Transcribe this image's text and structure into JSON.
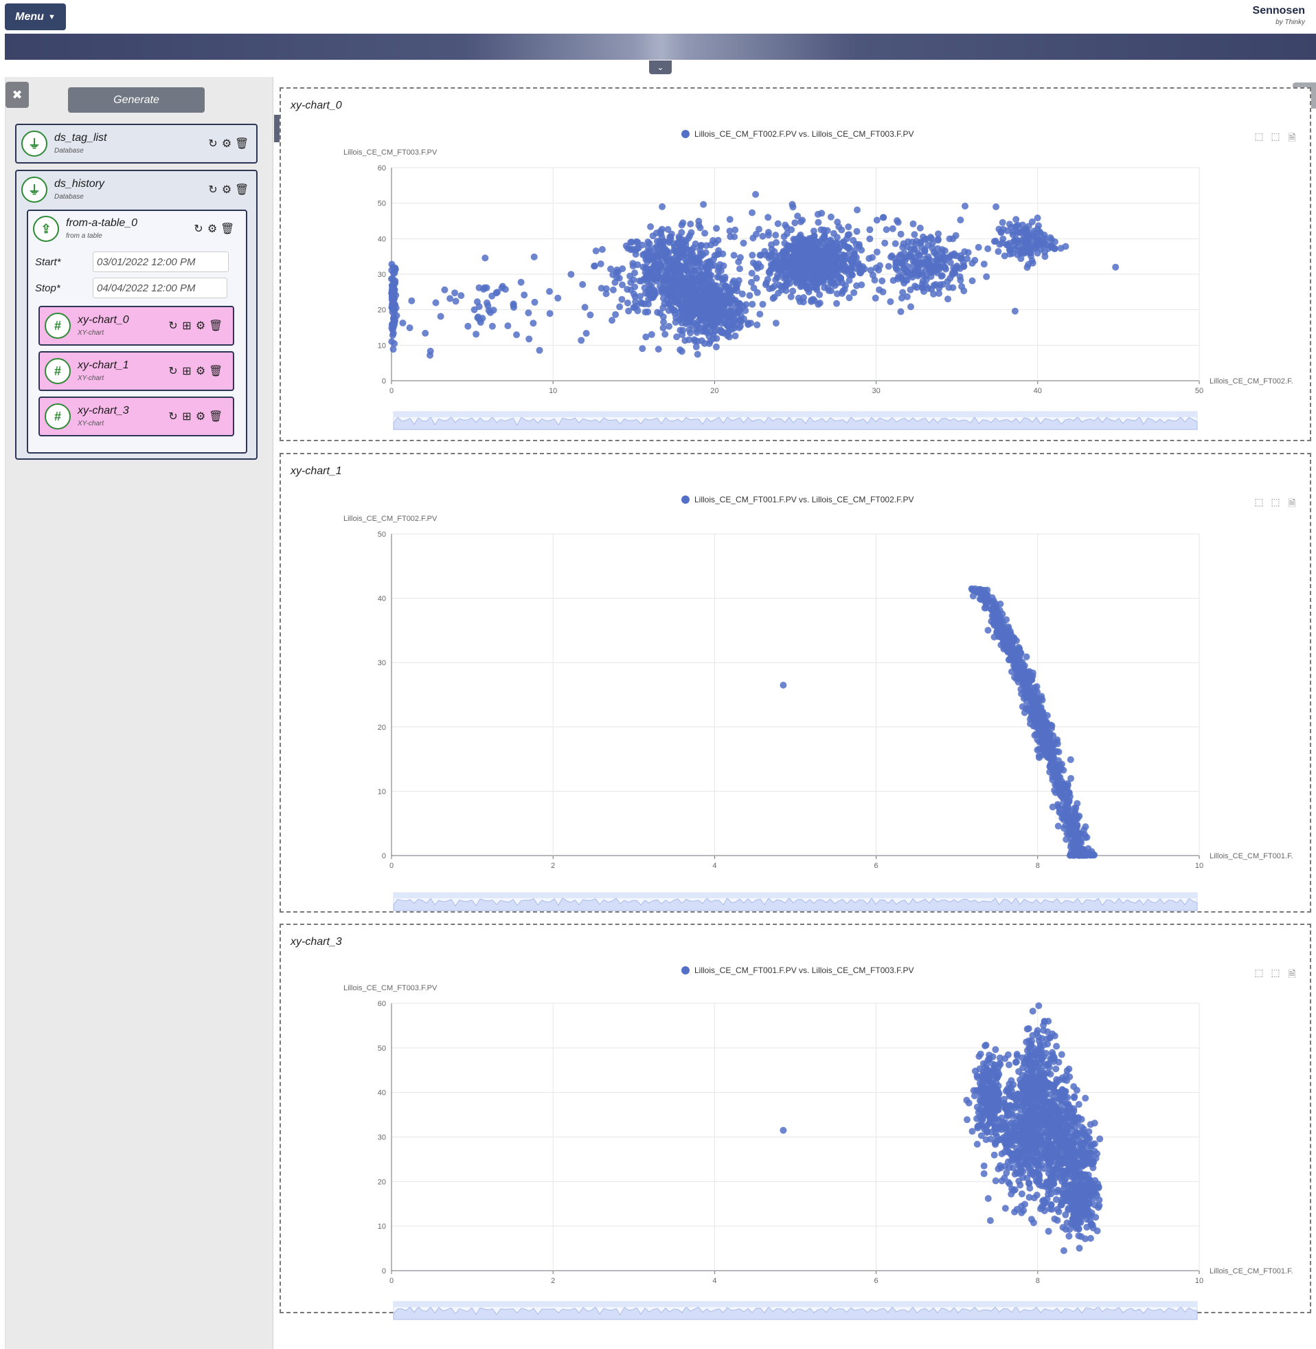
{
  "header": {
    "menu_label": "Menu",
    "brand_name": "Sennosen",
    "brand_sub": "by Thinky"
  },
  "sidebar": {
    "generate_label": "Generate",
    "nodes": [
      {
        "title": "ds_tag_list",
        "subtitle": "Database"
      },
      {
        "title": "ds_history",
        "subtitle": "Database"
      },
      {
        "title": "from-a-table_0",
        "subtitle": "from a table"
      },
      {
        "title": "xy-chart_0",
        "subtitle": "XY-chart"
      },
      {
        "title": "xy-chart_1",
        "subtitle": "XY-chart"
      },
      {
        "title": "xy-chart_3",
        "subtitle": "XY-chart"
      }
    ],
    "start_label": "Start*",
    "start_value": "03/01/2022 12:00 PM",
    "stop_label": "Stop*",
    "stop_value": "04/04/2022 12:00 PM"
  },
  "icons": {
    "plug": "plug-icon",
    "upload": "upload-icon",
    "hash": "hash-icon",
    "refresh": "refresh-icon",
    "gear": "gear-icon",
    "trash": "trash-icon",
    "table": "table-icon",
    "tools": "tools-icon",
    "report": "report-icon",
    "chevron_left": "chevron-left-icon",
    "chevron_down": "chevron-down-icon"
  },
  "colors": {
    "primary": "#354469",
    "node_pink": "#f7b9e9",
    "node_blue": "#e2e6ef",
    "series": "#5470c6",
    "icon_green": "#2d8a34"
  },
  "chart_data": [
    {
      "type": "scatter",
      "title": "xy-chart_0",
      "series": [
        {
          "name": "Lillois_CE_CM_FT002.F.PV vs. Lillois_CE_CM_FT003.F.PV"
        }
      ],
      "xlabel": "Lillois_CE_CM_FT002.F.",
      "ylabel": "Lillois_CE_CM_FT003.F.PV",
      "xlim": [
        0,
        50
      ],
      "ylim": [
        0,
        60
      ],
      "xticks": [
        "0",
        "10",
        "20",
        "30",
        "40",
        "50"
      ],
      "yticks": [
        "0",
        "10",
        "20",
        "30",
        "40",
        "50",
        "60"
      ],
      "grid": true,
      "legend_position": "top",
      "clusters": [
        {
          "x": 0,
          "y": 22,
          "sx": 0.15,
          "sy": 6.5,
          "n": 160
        },
        {
          "x": 6,
          "y": 21,
          "sx": 3.5,
          "sy": 6,
          "n": 70
        },
        {
          "x": 17.5,
          "y": 31,
          "sx": 1.7,
          "sy": 5.5,
          "n": 500
        },
        {
          "x": 19.5,
          "y": 20,
          "sx": 1.2,
          "sy": 4,
          "n": 450
        },
        {
          "x": 26,
          "y": 33,
          "sx": 1.4,
          "sy": 4.5,
          "n": 650
        },
        {
          "x": 33,
          "y": 33,
          "sx": 1.4,
          "sy": 4.5,
          "n": 220
        },
        {
          "x": 39.2,
          "y": 39,
          "sx": 0.9,
          "sy": 2.8,
          "n": 130
        },
        {
          "x": 25,
          "y": 40,
          "sx": 6,
          "sy": 8,
          "n": 60
        }
      ]
    },
    {
      "type": "scatter",
      "title": "xy-chart_1",
      "series": [
        {
          "name": "Lillois_CE_CM_FT001.F.PV vs. Lillois_CE_CM_FT002.F.PV"
        }
      ],
      "xlabel": "Lillois_CE_CM_FT001.F.",
      "ylabel": "Lillois_CE_CM_FT002.F.PV",
      "xlim": [
        0,
        10
      ],
      "ylim": [
        0,
        50
      ],
      "xticks": [
        "0",
        "2",
        "4",
        "6",
        "8",
        "10"
      ],
      "yticks": [
        "0",
        "10",
        "20",
        "30",
        "40",
        "50"
      ],
      "grid": true,
      "legend_position": "top",
      "curve": {
        "x_at_y41": 7.25,
        "x_at_y0": 8.55,
        "y_max": 41.5,
        "n": 700,
        "spread": 0.06
      },
      "outliers": [
        {
          "x": 4.85,
          "y": 26.5
        }
      ],
      "baseline": {
        "x_from": 8.4,
        "x_to": 8.7,
        "y": 0,
        "n": 40
      }
    },
    {
      "type": "scatter",
      "title": "xy-chart_3",
      "series": [
        {
          "name": "Lillois_CE_CM_FT001.F.PV vs. Lillois_CE_CM_FT003.F.PV"
        }
      ],
      "xlabel": "Lillois_CE_CM_FT001.F.",
      "ylabel": "Lillois_CE_CM_FT003.F.PV",
      "xlim": [
        0,
        10
      ],
      "ylim": [
        0,
        60
      ],
      "xticks": [
        "0",
        "2",
        "4",
        "6",
        "8",
        "10"
      ],
      "yticks": [
        "0",
        "10",
        "20",
        "30",
        "40",
        "50",
        "60"
      ],
      "grid": true,
      "legend_position": "top",
      "clusters": [
        {
          "x": 7.4,
          "y": 39,
          "sx": 0.1,
          "sy": 4.5,
          "n": 220
        },
        {
          "x": 7.75,
          "y": 30,
          "sx": 0.15,
          "sy": 7,
          "n": 260
        },
        {
          "x": 8.0,
          "y": 36,
          "sx": 0.12,
          "sy": 9,
          "n": 450
        },
        {
          "x": 8.3,
          "y": 28,
          "sx": 0.12,
          "sy": 8,
          "n": 350
        },
        {
          "x": 8.55,
          "y": 15,
          "sx": 0.1,
          "sy": 3,
          "n": 180
        },
        {
          "x": 8.6,
          "y": 26,
          "sx": 0.08,
          "sy": 4,
          "n": 90
        }
      ],
      "outliers": [
        {
          "x": 4.85,
          "y": 31.5
        },
        {
          "x": 7.6,
          "y": 14
        },
        {
          "x": 7.8,
          "y": 13
        }
      ]
    }
  ]
}
